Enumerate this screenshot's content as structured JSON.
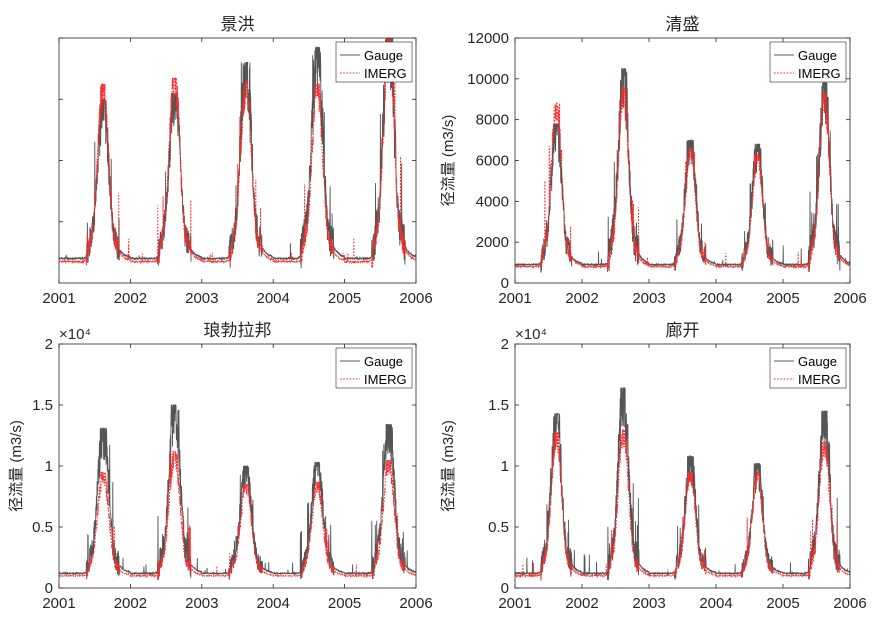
{
  "colors": {
    "gauge": "#555555",
    "imerg": "#ff2a2a",
    "axis": "#262626"
  },
  "chart_data": [
    {
      "type": "line",
      "title": "景洪",
      "ylabel": "",
      "xlim": [
        2001,
        2006
      ],
      "x_ticks": [
        "2001",
        "2002",
        "2003",
        "2004",
        "2005",
        "2006"
      ],
      "ylim": [
        0,
        8000
      ],
      "y_ticks": [],
      "y_tick_values": [
        2000,
        4000,
        6000,
        8000
      ],
      "exponent": "",
      "grid": false,
      "legend_position": "top-right",
      "series": [
        {
          "name": "Gauge",
          "peaks": [
            6000,
            6200,
            7200,
            7700,
            8200
          ],
          "base": 800,
          "dash": "solid"
        },
        {
          "name": "IMERG",
          "peaks": [
            6500,
            6700,
            6600,
            6500,
            8000
          ],
          "base": 700,
          "dash": "dotted"
        }
      ]
    },
    {
      "type": "line",
      "title": "清盛",
      "ylabel": "径流量 (m3/s)",
      "xlim": [
        2001,
        2006
      ],
      "x_ticks": [
        "2001",
        "2002",
        "2003",
        "2004",
        "2005",
        "2006"
      ],
      "ylim": [
        0,
        12000
      ],
      "y_ticks": [
        "0",
        "2000",
        "4000",
        "6000",
        "8000",
        "10000",
        "12000"
      ],
      "y_tick_values": [
        0,
        2000,
        4000,
        6000,
        8000,
        10000,
        12000
      ],
      "exponent": "",
      "grid": false,
      "legend_position": "top-right",
      "series": [
        {
          "name": "Gauge",
          "peaks": [
            7800,
            10500,
            7000,
            6800,
            9800
          ],
          "base": 900,
          "dash": "solid"
        },
        {
          "name": "IMERG",
          "peaks": [
            8800,
            9600,
            6600,
            6300,
            9300
          ],
          "base": 800,
          "dash": "dotted"
        }
      ]
    },
    {
      "type": "line",
      "title": "琅勃拉邦",
      "ylabel": "径流量 (m3/s)",
      "xlim": [
        2001,
        2006
      ],
      "x_ticks": [
        "2001",
        "2002",
        "2003",
        "2004",
        "2005",
        "2006"
      ],
      "ylim": [
        0,
        2
      ],
      "y_ticks": [
        "0",
        "0.5",
        "1",
        "1.5",
        "2"
      ],
      "y_tick_values": [
        0,
        0.5,
        1,
        1.5,
        2
      ],
      "exponent": "×10⁴",
      "grid": false,
      "legend_position": "top-right",
      "series": [
        {
          "name": "Gauge",
          "peaks": [
            1.31,
            1.5,
            1.0,
            1.03,
            1.34
          ],
          "base": 0.12,
          "dash": "solid"
        },
        {
          "name": "IMERG",
          "peaks": [
            0.95,
            1.12,
            0.85,
            0.87,
            1.05
          ],
          "base": 0.1,
          "dash": "dotted"
        }
      ]
    },
    {
      "type": "line",
      "title": "廊开",
      "ylabel": "径流量 (m3/s)",
      "xlim": [
        2001,
        2006
      ],
      "x_ticks": [
        "2001",
        "2002",
        "2003",
        "2004",
        "2005",
        "2006"
      ],
      "ylim": [
        0,
        2
      ],
      "y_ticks": [
        "0",
        "0.5",
        "1",
        "1.5",
        "2"
      ],
      "y_tick_values": [
        0,
        0.5,
        1,
        1.5,
        2
      ],
      "exponent": "×10⁴",
      "grid": false,
      "legend_position": "top-right",
      "series": [
        {
          "name": "Gauge",
          "peaks": [
            1.43,
            1.64,
            1.08,
            1.02,
            1.45
          ],
          "base": 0.12,
          "dash": "solid"
        },
        {
          "name": "IMERG",
          "peaks": [
            1.28,
            1.3,
            0.95,
            0.95,
            1.2
          ],
          "base": 0.1,
          "dash": "dotted"
        }
      ]
    }
  ]
}
